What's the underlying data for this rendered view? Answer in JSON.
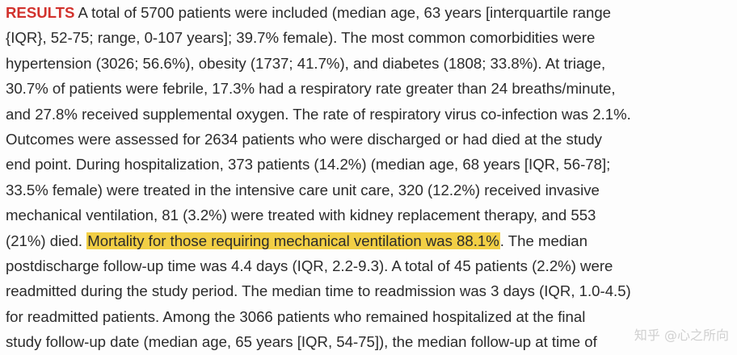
{
  "results": {
    "label": "RESULTS",
    "lines": [
      " A total of 5700 patients were included (median age, 63 years [interquartile range",
      "{IQR}, 52-75; range, 0-107 years]; 39.7% female). The most common comorbidities were",
      "hypertension (3026; 56.6%), obesity (1737; 41.7%), and diabetes (1808; 33.8%). At triage,",
      "30.7% of patients were febrile, 17.3% had a respiratory rate greater than 24 breaths/minute,",
      "and 27.8% received supplemental oxygen. The rate of respiratory virus co-infection was 2.1%.",
      "Outcomes were assessed for 2634 patients who were discharged or had died at the study",
      "end point. During hospitalization, 373 patients (14.2%) (median age, 68 years [IQR, 56-78];",
      "33.5% female) were treated in the intensive care unit care, 320 (12.2%) received invasive",
      "mechanical ventilation, 81 (3.2%) were treated with kidney replacement therapy, and 553",
      "postdischarge follow-up time was 4.4 days (IQR, 2.2-9.3). A total of 45 patients (2.2%) were",
      "readmitted during the study period. The median time to readmission was 3 days (IQR, 1.0-4.5)",
      "for readmitted patients. Among the 3066 patients who remained hospitalized at the final",
      "study follow-up date (median age, 65 years [IQR, 54-75]), the median follow-up at time of"
    ],
    "line10_before": "(21%) died. ",
    "line10_highlight": "Mortality for those requiring mechanical ventilation was 88.1%",
    "line10_after": ". The median"
  },
  "watermark": "知乎 @心之所向"
}
